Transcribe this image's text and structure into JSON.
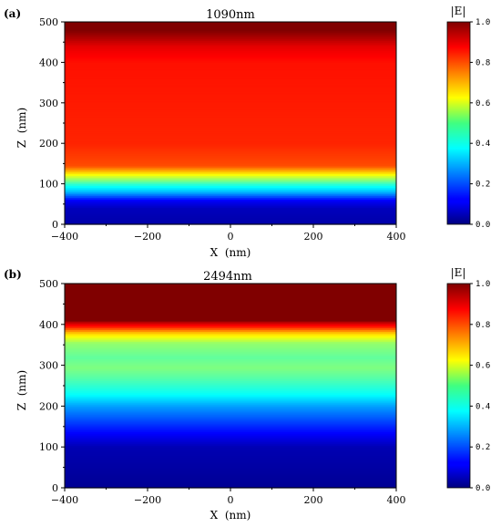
{
  "chart_data": [
    {
      "type": "heatmap",
      "panel_label": "(a)",
      "title": "1090nm",
      "xlabel": "X  (nm)",
      "ylabel": "Z  (nm)",
      "xlim": [
        -400,
        400
      ],
      "ylim": [
        0,
        500
      ],
      "xticks": [
        -400,
        -200,
        0,
        200,
        400
      ],
      "yticks": [
        0,
        100,
        200,
        300,
        400,
        500
      ],
      "colorbar": {
        "title": "|E|",
        "range": [
          0,
          1
        ],
        "ticks": [
          "0.0",
          "0.2",
          "0.4",
          "0.6",
          "0.8",
          "1.0"
        ]
      },
      "profile_z": [
        0,
        40,
        60,
        80,
        100,
        115,
        130,
        145,
        200,
        400,
        440,
        460,
        480,
        500
      ],
      "profile_E": [
        0.04,
        0.06,
        0.12,
        0.3,
        0.42,
        0.55,
        0.68,
        0.8,
        0.84,
        0.86,
        0.9,
        0.95,
        1.0,
        1.0
      ]
    },
    {
      "type": "heatmap",
      "panel_label": "(b)",
      "title": "2494nm",
      "xlabel": "X  (nm)",
      "ylabel": "Z  (nm)",
      "xlim": [
        -400,
        400
      ],
      "ylim": [
        0,
        500
      ],
      "xticks": [
        -400,
        -200,
        0,
        200,
        400
      ],
      "yticks": [
        0,
        100,
        200,
        300,
        400,
        500
      ],
      "colorbar": {
        "title": "|E|",
        "range": [
          0,
          1
        ],
        "ticks": [
          "0.0",
          "0.2",
          "0.4",
          "0.6",
          "0.8",
          "1.0"
        ]
      },
      "profile_z": [
        0,
        100,
        150,
        200,
        230,
        270,
        295,
        320,
        355,
        380,
        395,
        405,
        410,
        500
      ],
      "profile_E": [
        0.02,
        0.05,
        0.16,
        0.28,
        0.38,
        0.46,
        0.5,
        0.47,
        0.52,
        0.68,
        0.85,
        0.93,
        1.0,
        1.0
      ]
    }
  ],
  "colormap_name": "jet"
}
